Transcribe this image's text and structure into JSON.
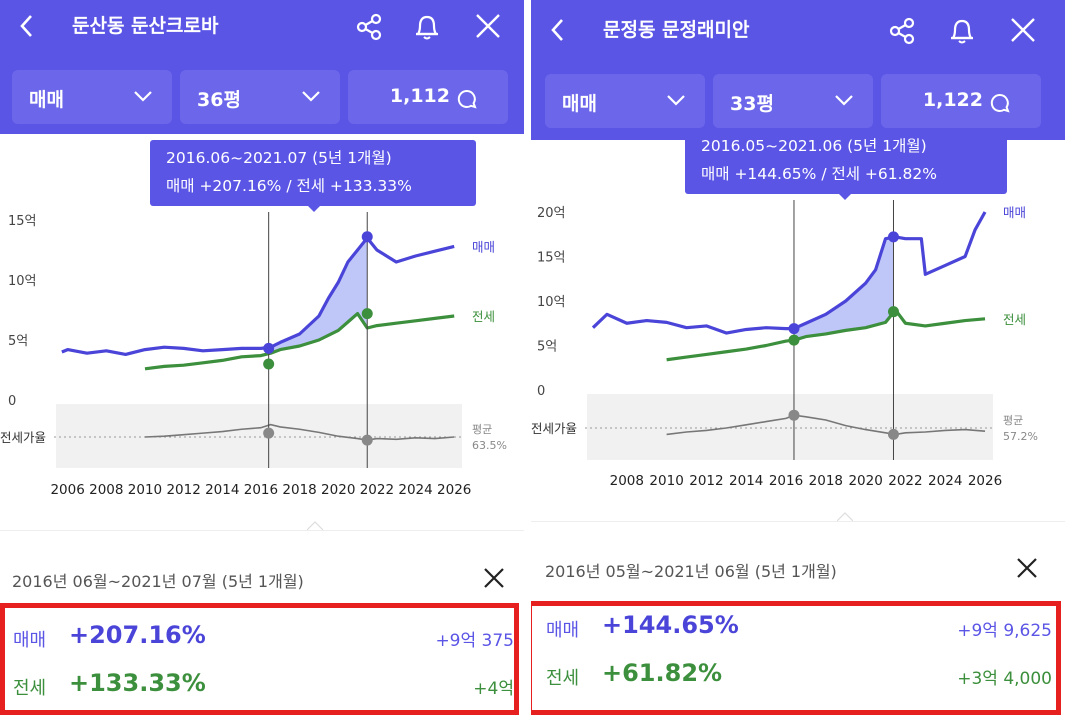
{
  "colors": {
    "accent": "#5b55e6",
    "sale": "#4a44d8",
    "jeonse": "#3c8f3c",
    "ratio": "#777777",
    "highlight_box": "#e5201f"
  },
  "panels": [
    {
      "title": "둔산동 둔산크로바",
      "tabs": {
        "type": "매매",
        "size": "36평",
        "count": "1,112"
      },
      "tooltip": {
        "range": "2016.06~2021.07 (5년 1개월)",
        "summary": "매매 +207.16%  /  전세 +133.33%"
      },
      "chart_data": {
        "type": "line",
        "ylabels": [
          "15억",
          "10억",
          "5억",
          "0"
        ],
        "yticks": [
          15,
          10,
          5,
          0
        ],
        "ylim": [
          0,
          15
        ],
        "ratio_label": "전세가율",
        "avg_label": "평균",
        "avg_value": "63.5%",
        "xlabels": [
          "2006",
          "2008",
          "2010",
          "2012",
          "2014",
          "2016",
          "2018",
          "2020",
          "2022",
          "2024",
          "2026"
        ],
        "series": [
          {
            "name": "매매",
            "color": "#4a44d8",
            "x": [
              2005.7,
              2006,
              2007,
              2008,
              2009,
              2010,
              2011,
              2012,
              2013,
              2014,
              2015,
              2016,
              2016.5,
              2017,
              2018,
              2019,
              2019.5,
              2020,
              2020.5,
              2021,
              2021.5,
              2022,
              2022.5,
              2023,
              2024,
              2025,
              2026
            ],
            "y": [
              4.0,
              4.2,
              3.9,
              4.1,
              3.8,
              4.2,
              4.4,
              4.3,
              4.1,
              4.2,
              4.3,
              4.3,
              4.4,
              4.8,
              5.5,
              7.0,
              8.5,
              9.8,
              11.5,
              12.5,
              13.5,
              12.5,
              12.0,
              11.5,
              12.0,
              12.4,
              12.8
            ]
          },
          {
            "name": "전세",
            "color": "#3c8f3c",
            "x": [
              2010,
              2011,
              2012,
              2013,
              2014,
              2015,
              2016,
              2016.5,
              2017,
              2018,
              2019,
              2020,
              2020.5,
              2021,
              2021.5,
              2022,
              2023,
              2024,
              2025,
              2026
            ],
            "y": [
              2.6,
              2.8,
              2.9,
              3.1,
              3.3,
              3.6,
              3.7,
              3.9,
              4.2,
              4.5,
              5.0,
              5.8,
              6.5,
              7.2,
              6.0,
              6.2,
              6.4,
              6.6,
              6.8,
              7.0
            ]
          }
        ],
        "ratio": {
          "x": [
            2010,
            2011,
            2012,
            2013,
            2014,
            2015,
            2016,
            2016.5,
            2017,
            2018,
            2019,
            2020,
            2021,
            2021.5,
            2022,
            2023,
            2024,
            2025,
            2026
          ],
          "y": [
            60,
            61,
            63,
            65,
            67,
            70,
            72,
            76,
            73,
            70,
            66,
            61,
            58,
            56,
            58,
            57,
            59,
            58,
            60
          ],
          "ylim": [
            20,
            100
          ]
        },
        "markers": [
          {
            "x": 2016.4,
            "sale": 4.3,
            "jeonse": 3.0,
            "ratio": 65
          },
          {
            "x": 2021.5,
            "sale": 13.6,
            "jeonse": 7.2,
            "ratio": 56
          }
        ],
        "xlim": [
          2005.5,
          2026.3
        ]
      },
      "period": "2016년 06월~2021년 07월 (5년 1개월)",
      "sale": {
        "label": "매매",
        "pct": "+207.16%",
        "amount": "+9억 375"
      },
      "jeonse": {
        "label": "전세",
        "pct": "+133.33%",
        "amount": "+4억"
      }
    },
    {
      "title": "문정동 문정래미안",
      "tabs": {
        "type": "매매",
        "size": "33평",
        "count": "1,122"
      },
      "tooltip": {
        "range": "2016.05~2021.06 (5년 1개월)",
        "summary": "매매 +144.65%  /  전세 +61.82%"
      },
      "chart_data": {
        "type": "line",
        "ylabels": [
          "20억",
          "15억",
          "10억",
          "5억",
          "0"
        ],
        "yticks": [
          20,
          15,
          10,
          5,
          0
        ],
        "ylim": [
          0,
          20
        ],
        "ratio_label": "전세가율",
        "avg_label": "평균",
        "avg_value": "57.2%",
        "xlabels": [
          "2008",
          "2010",
          "2012",
          "2014",
          "2016",
          "2018",
          "2020",
          "2022",
          "2024",
          "2026"
        ],
        "series": [
          {
            "name": "매매",
            "color": "#4a44d8",
            "x": [
              2006.3,
              2007,
              2008,
              2009,
              2010,
              2011,
              2012,
              2013,
              2014,
              2015,
              2016,
              2016.4,
              2017,
              2018,
              2019,
              2020,
              2020.5,
              2021,
              2021.5,
              2022,
              2022.8,
              2023,
              2024,
              2025,
              2025.5,
              2026
            ],
            "y": [
              7.0,
              8.5,
              7.5,
              7.8,
              7.6,
              7.0,
              7.2,
              6.4,
              6.8,
              7.0,
              6.9,
              6.9,
              7.5,
              8.5,
              10.0,
              12.0,
              13.5,
              17.0,
              17.2,
              17.0,
              17.0,
              13.0,
              14.0,
              15.0,
              18.0,
              20.0
            ]
          },
          {
            "name": "전세",
            "color": "#3c8f3c",
            "x": [
              2010,
              2011,
              2012,
              2013,
              2014,
              2015,
              2016,
              2016.4,
              2017,
              2018,
              2019,
              2020,
              2021,
              2021.5,
              2022,
              2023,
              2024,
              2025,
              2026
            ],
            "y": [
              3.4,
              3.7,
              4.0,
              4.3,
              4.6,
              5.0,
              5.5,
              5.6,
              6.0,
              6.3,
              6.7,
              7.0,
              7.6,
              9.0,
              7.5,
              7.2,
              7.5,
              7.8,
              8.0
            ]
          },
          {
            "name": "ratio",
            "color": "#777777",
            "x": [],
            "y": []
          }
        ],
        "ratio": {
          "x": [
            2010,
            2011,
            2012,
            2013,
            2014,
            2015,
            2016,
            2016.4,
            2017,
            2018,
            2019,
            2020,
            2021,
            2021.5,
            2022,
            2023,
            2024,
            2025,
            2026
          ],
          "y": [
            52,
            55,
            57,
            60,
            64,
            68,
            72,
            76,
            74,
            70,
            63,
            58,
            54,
            52,
            54,
            55,
            57,
            58,
            56
          ],
          "ylim": [
            20,
            100
          ]
        },
        "markers": [
          {
            "x": 2016.4,
            "sale": 6.9,
            "jeonse": 5.6,
            "ratio": 76
          },
          {
            "x": 2021.4,
            "sale": 17.2,
            "jeonse": 8.8,
            "ratio": 52
          }
        ],
        "xlim": [
          2006.1,
          2026.3
        ]
      },
      "period": "2016년 05월~2021년 06월 (5년 1개월)",
      "sale": {
        "label": "매매",
        "pct": "+144.65%",
        "amount": "+9억 9,625"
      },
      "jeonse": {
        "label": "전세",
        "pct": "+61.82%",
        "amount": "+3억 4,000"
      }
    }
  ]
}
